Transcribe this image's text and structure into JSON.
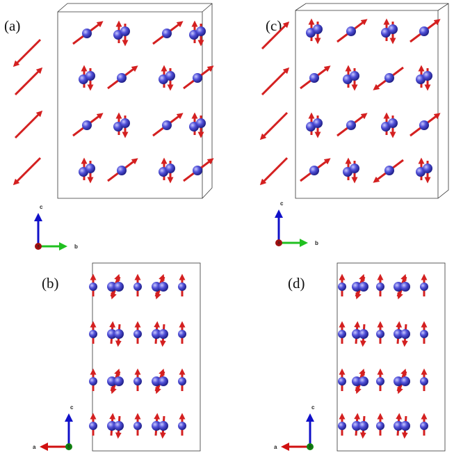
{
  "panels": [
    {
      "label": "(a)",
      "axes": {
        "up": "c",
        "side": "b",
        "origin": "a"
      }
    },
    {
      "label": "(b)",
      "axes": {
        "up": "c",
        "side": "a",
        "origin": "b"
      }
    },
    {
      "label": "(c)",
      "axes": {
        "up": "c",
        "side": "b",
        "origin": "a"
      }
    },
    {
      "label": "(d)",
      "axes": {
        "up": "c",
        "side": "a",
        "origin": "b"
      }
    }
  ]
}
